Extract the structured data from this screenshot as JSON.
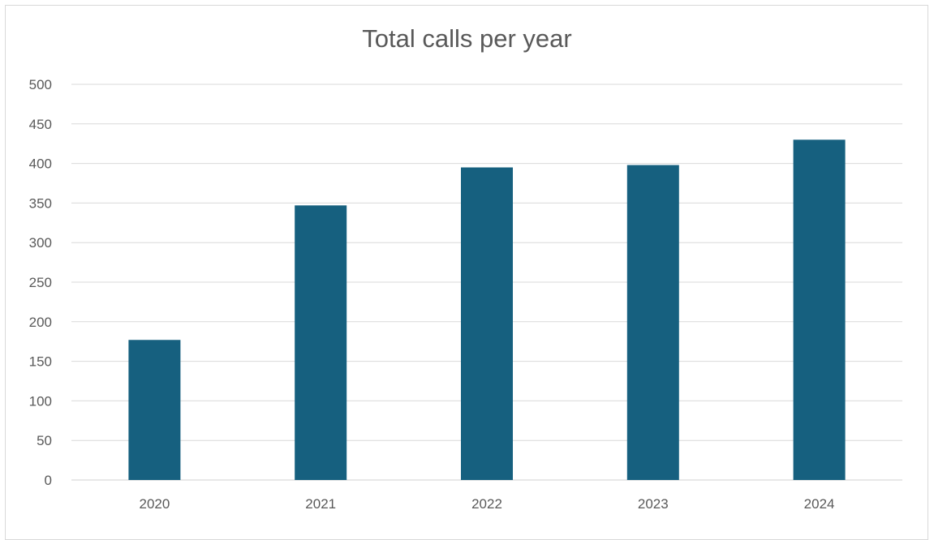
{
  "chart_data": {
    "type": "bar",
    "title": "Total calls per year",
    "categories": [
      "2020",
      "2021",
      "2022",
      "2023",
      "2024"
    ],
    "values": [
      177,
      347,
      395,
      398,
      430
    ],
    "xlabel": "",
    "ylabel": "",
    "ylim": [
      0,
      500
    ],
    "yticks": [
      0,
      50,
      100,
      150,
      200,
      250,
      300,
      350,
      400,
      450,
      500
    ],
    "grid": true,
    "legend": "none",
    "colors": {
      "bar": "#16607f",
      "grid": "#d9d9d9",
      "text": "#595959"
    }
  }
}
